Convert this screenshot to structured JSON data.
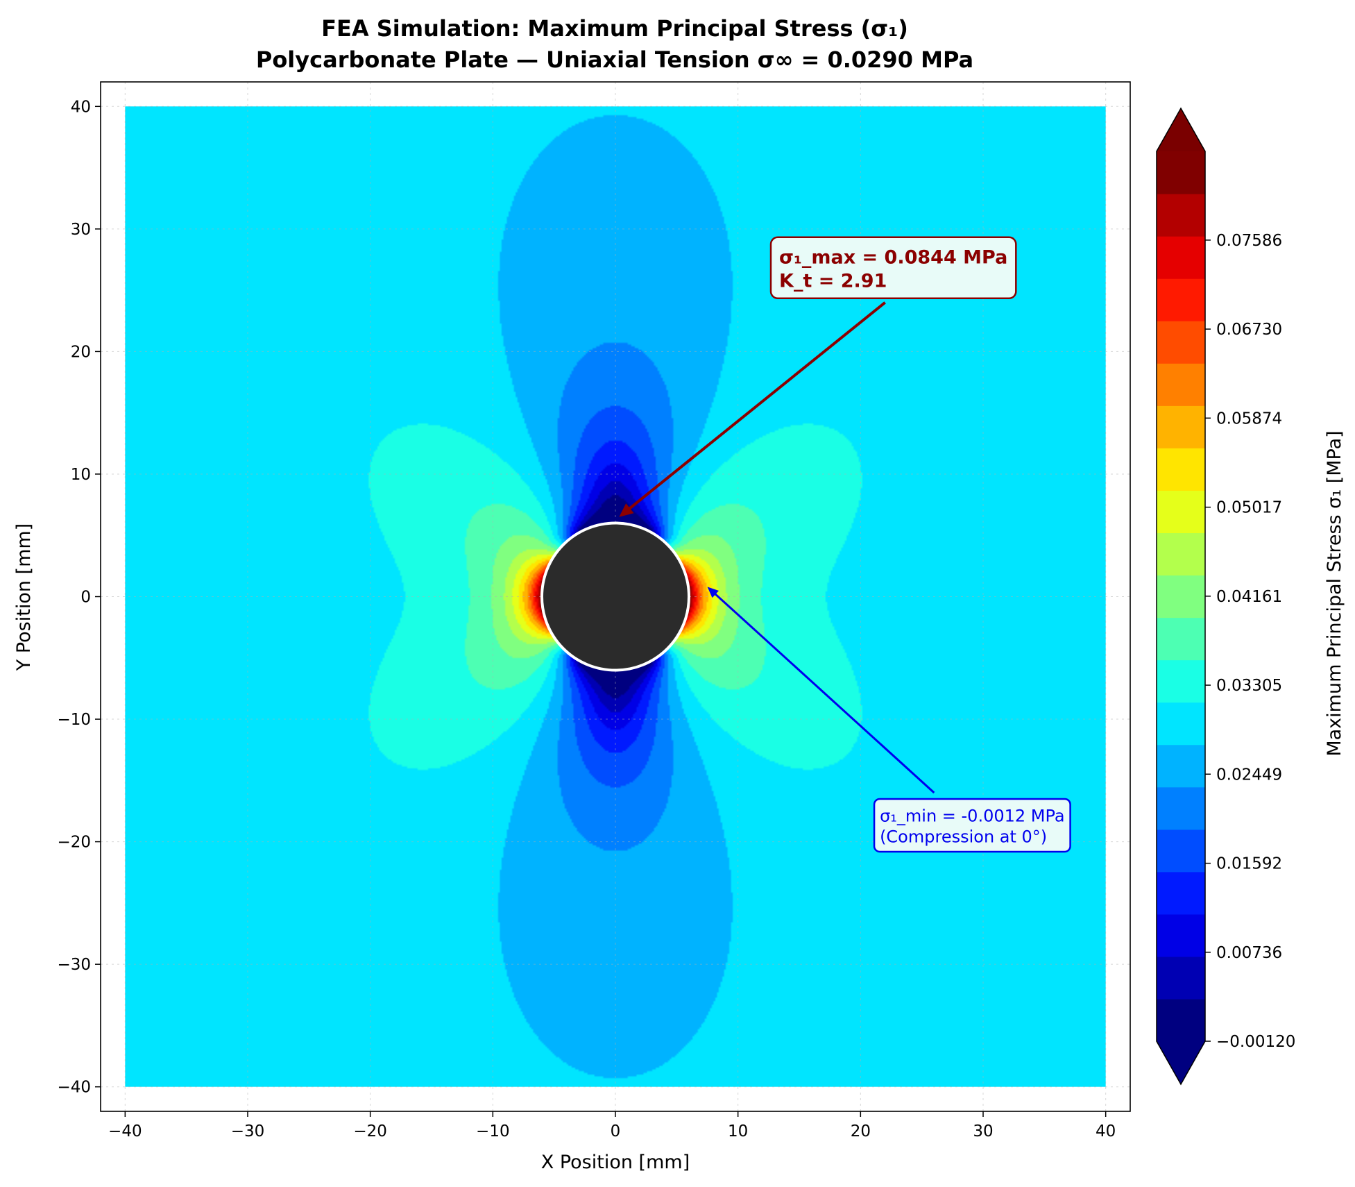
{
  "chart_data": {
    "type": "heatmap",
    "title": [
      "FEA Simulation: Maximum Principal Stress (σ₁)",
      "Polycarbonate Plate — Uniaxial Tension σ∞ = 0.0290 MPa"
    ],
    "xlabel": "X Position [mm]",
    "ylabel": "Y Position [mm]",
    "xlim": [
      -42,
      42
    ],
    "ylim": [
      -42,
      42
    ],
    "xticks": [
      -40,
      -30,
      -20,
      -10,
      0,
      10,
      20,
      30,
      40
    ],
    "yticks": [
      -40,
      -30,
      -20,
      -10,
      0,
      10,
      20,
      30,
      40
    ],
    "xtick_labels": [
      "−40",
      "−30",
      "−20",
      "−10",
      "0",
      "10",
      "20",
      "30",
      "40"
    ],
    "ytick_labels": [
      "−40",
      "−30",
      "−20",
      "−10",
      "0",
      "10",
      "20",
      "30",
      "40"
    ],
    "grid": true,
    "colormap": "jet",
    "levels": 21,
    "color_range": [
      -0.0012,
      0.0844
    ],
    "colorbar_label": "Maximum Principal Stress σ₁ [MPa]",
    "colorbar_ticks": [
      -0.0012,
      0.00736,
      0.01592,
      0.02449,
      0.03305,
      0.04161,
      0.05017,
      0.05874,
      0.0673,
      0.07586
    ],
    "colorbar_tick_labels": [
      "−0.00120",
      "0.00736",
      "0.01592",
      "0.02449",
      "0.03305",
      "0.04161",
      "0.05017",
      "0.05874",
      "0.06730",
      "0.07586"
    ],
    "plate_extent": {
      "x": [
        -40,
        40
      ],
      "y": [
        -40,
        40
      ]
    },
    "hole": {
      "center": [
        0,
        0
      ],
      "radius": 6,
      "color": "#2b2b2b"
    },
    "far_field_stress": 0.029,
    "annotations": [
      {
        "id": "max",
        "lines": [
          "σ₁_max = 0.0844 MPa",
          "K_t = 2.91"
        ],
        "point": [
          0.3,
          6.5
        ],
        "text_anchor": [
          22,
          24
        ],
        "color": "#8b0000"
      },
      {
        "id": "min",
        "lines": [
          "σ₁_min = -0.0012 MPa",
          "(Compression at 0°)"
        ],
        "point": [
          7.5,
          0.8
        ],
        "text_anchor": [
          26,
          -16
        ],
        "color": "#0000ee"
      }
    ]
  }
}
